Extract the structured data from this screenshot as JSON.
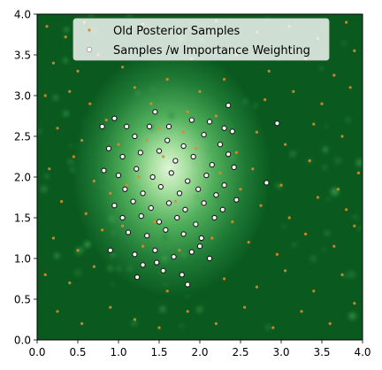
{
  "chart_data": {
    "type": "scatter",
    "title": "",
    "xlabel": "",
    "ylabel": "",
    "xlim": [
      0.0,
      4.0
    ],
    "ylim": [
      0.0,
      4.0
    ],
    "x_ticks": [
      "0.0",
      "0.5",
      "1.0",
      "1.5",
      "2.0",
      "2.5",
      "3.0",
      "3.5",
      "4.0"
    ],
    "y_ticks": [
      "0.0",
      "0.5",
      "1.0",
      "1.5",
      "2.0",
      "2.5",
      "3.0",
      "3.5",
      "4.0"
    ],
    "grid": false,
    "legend_position": "top-center",
    "background": {
      "type": "density-heatmap",
      "center": [
        1.65,
        2.05
      ],
      "colors": [
        "#0a5a1f",
        "#2f9a45",
        "#a8e0a0",
        "#dff5d8"
      ]
    },
    "series": [
      {
        "name": "Old Posterior Samples",
        "marker": "small-dot",
        "color": "#e08a2a",
        "points": [
          [
            0.12,
            3.85
          ],
          [
            0.35,
            3.72
          ],
          [
            0.58,
            3.9
          ],
          [
            0.95,
            3.8
          ],
          [
            1.3,
            3.88
          ],
          [
            2.2,
            3.92
          ],
          [
            2.7,
            3.78
          ],
          [
            3.1,
            3.85
          ],
          [
            3.45,
            3.7
          ],
          [
            3.8,
            3.9
          ],
          [
            0.2,
            3.4
          ],
          [
            0.5,
            3.3
          ],
          [
            0.75,
            3.5
          ],
          [
            1.05,
            3.35
          ],
          [
            1.9,
            3.45
          ],
          [
            2.45,
            3.5
          ],
          [
            2.85,
            3.3
          ],
          [
            3.3,
            3.45
          ],
          [
            3.65,
            3.25
          ],
          [
            3.9,
            3.55
          ],
          [
            0.1,
            3.0
          ],
          [
            0.4,
            3.05
          ],
          [
            0.65,
            2.9
          ],
          [
            2.8,
            2.95
          ],
          [
            3.15,
            3.05
          ],
          [
            3.5,
            2.9
          ],
          [
            3.85,
            3.1
          ],
          [
            0.25,
            2.6
          ],
          [
            0.55,
            2.45
          ],
          [
            0.85,
            2.7
          ],
          [
            2.7,
            2.55
          ],
          [
            3.05,
            2.4
          ],
          [
            3.4,
            2.65
          ],
          [
            3.75,
            2.5
          ],
          [
            0.15,
            2.1
          ],
          [
            0.45,
            2.25
          ],
          [
            0.7,
            1.95
          ],
          [
            2.65,
            2.1
          ],
          [
            3.0,
            1.9
          ],
          [
            3.35,
            2.2
          ],
          [
            3.7,
            1.85
          ],
          [
            3.95,
            2.05
          ],
          [
            0.3,
            1.7
          ],
          [
            0.6,
            1.55
          ],
          [
            0.9,
            1.8
          ],
          [
            2.75,
            1.65
          ],
          [
            3.1,
            1.5
          ],
          [
            3.45,
            1.75
          ],
          [
            3.8,
            1.6
          ],
          [
            0.2,
            1.25
          ],
          [
            0.5,
            1.1
          ],
          [
            0.8,
            1.35
          ],
          [
            2.6,
            1.2
          ],
          [
            2.95,
            1.05
          ],
          [
            3.3,
            1.3
          ],
          [
            3.65,
            1.15
          ],
          [
            3.9,
            1.4
          ],
          [
            0.1,
            0.8
          ],
          [
            0.4,
            0.7
          ],
          [
            0.7,
            0.9
          ],
          [
            1.6,
            0.6
          ],
          [
            2.3,
            0.75
          ],
          [
            2.7,
            0.65
          ],
          [
            3.05,
            0.85
          ],
          [
            3.4,
            0.6
          ],
          [
            3.75,
            0.8
          ],
          [
            0.25,
            0.35
          ],
          [
            0.55,
            0.2
          ],
          [
            0.9,
            0.4
          ],
          [
            1.2,
            0.25
          ],
          [
            1.5,
            0.15
          ],
          [
            1.85,
            0.35
          ],
          [
            2.2,
            0.2
          ],
          [
            2.55,
            0.4
          ],
          [
            2.9,
            0.15
          ],
          [
            3.25,
            0.35
          ],
          [
            3.6,
            0.2
          ],
          [
            3.9,
            0.45
          ],
          [
            1.2,
            3.1
          ],
          [
            1.6,
            3.2
          ],
          [
            2.0,
            3.05
          ],
          [
            2.3,
            3.2
          ],
          [
            1.4,
            2.9
          ],
          [
            1.85,
            2.8
          ],
          [
            2.2,
            2.75
          ],
          [
            1.0,
            2.4
          ],
          [
            1.1,
            1.9
          ],
          [
            1.05,
            1.4
          ],
          [
            1.3,
            1.15
          ],
          [
            1.75,
            1.1
          ],
          [
            2.15,
            1.25
          ],
          [
            2.4,
            1.45
          ],
          [
            2.45,
            2.3
          ],
          [
            2.5,
            1.85
          ],
          [
            1.5,
            2.6
          ],
          [
            1.95,
            2.35
          ],
          [
            1.25,
            2.0
          ],
          [
            1.7,
            1.7
          ],
          [
            2.05,
            1.65
          ],
          [
            1.45,
            1.45
          ],
          [
            1.55,
            2.25
          ],
          [
            2.25,
            2.05
          ],
          [
            1.35,
            2.45
          ],
          [
            1.8,
            2.55
          ]
        ]
      },
      {
        "name": "Samples /w Importance Weighting",
        "marker": "white-ring",
        "color": "#ffffff",
        "points": [
          [
            0.8,
            2.62
          ],
          [
            2.95,
            2.66
          ],
          [
            2.4,
            2.56
          ],
          [
            0.82,
            2.08
          ],
          [
            2.82,
            1.93
          ],
          [
            1.23,
            0.77
          ],
          [
            1.78,
            0.8
          ],
          [
            2.0,
            1.15
          ],
          [
            1.47,
            0.95
          ],
          [
            1.1,
            2.62
          ],
          [
            1.2,
            2.5
          ],
          [
            1.38,
            2.62
          ],
          [
            1.6,
            2.45
          ],
          [
            1.8,
            2.38
          ],
          [
            2.05,
            2.52
          ],
          [
            2.25,
            2.4
          ],
          [
            1.05,
            2.25
          ],
          [
            1.27,
            2.3
          ],
          [
            1.5,
            2.32
          ],
          [
            1.7,
            2.2
          ],
          [
            1.92,
            2.25
          ],
          [
            2.15,
            2.15
          ],
          [
            2.35,
            2.28
          ],
          [
            1.0,
            2.02
          ],
          [
            1.22,
            2.1
          ],
          [
            1.42,
            2.0
          ],
          [
            1.65,
            2.05
          ],
          [
            1.85,
            1.95
          ],
          [
            2.08,
            2.02
          ],
          [
            2.3,
            1.9
          ],
          [
            1.08,
            1.85
          ],
          [
            1.3,
            1.8
          ],
          [
            1.52,
            1.88
          ],
          [
            1.75,
            1.8
          ],
          [
            1.98,
            1.85
          ],
          [
            2.2,
            1.78
          ],
          [
            0.95,
            1.65
          ],
          [
            1.18,
            1.7
          ],
          [
            1.4,
            1.62
          ],
          [
            1.62,
            1.68
          ],
          [
            1.82,
            1.6
          ],
          [
            2.05,
            1.68
          ],
          [
            2.28,
            1.6
          ],
          [
            1.05,
            1.5
          ],
          [
            1.28,
            1.52
          ],
          [
            1.5,
            1.45
          ],
          [
            1.72,
            1.5
          ],
          [
            1.95,
            1.42
          ],
          [
            2.18,
            1.5
          ],
          [
            1.12,
            1.32
          ],
          [
            1.35,
            1.28
          ],
          [
            1.58,
            1.35
          ],
          [
            1.8,
            1.3
          ],
          [
            2.02,
            1.25
          ],
          [
            1.2,
            1.05
          ],
          [
            1.45,
            1.1
          ],
          [
            1.68,
            1.02
          ],
          [
            1.9,
            1.08
          ],
          [
            2.12,
            1.0
          ],
          [
            1.3,
            0.92
          ],
          [
            1.55,
            0.85
          ],
          [
            1.85,
            0.68
          ],
          [
            1.62,
            2.62
          ],
          [
            1.9,
            2.7
          ],
          [
            2.12,
            2.68
          ],
          [
            2.3,
            2.6
          ],
          [
            0.88,
            2.35
          ],
          [
            2.42,
            2.12
          ],
          [
            2.45,
            1.72
          ],
          [
            0.9,
            1.1
          ],
          [
            0.95,
            2.72
          ],
          [
            1.45,
            2.8
          ],
          [
            2.35,
            2.88
          ]
        ]
      }
    ]
  }
}
